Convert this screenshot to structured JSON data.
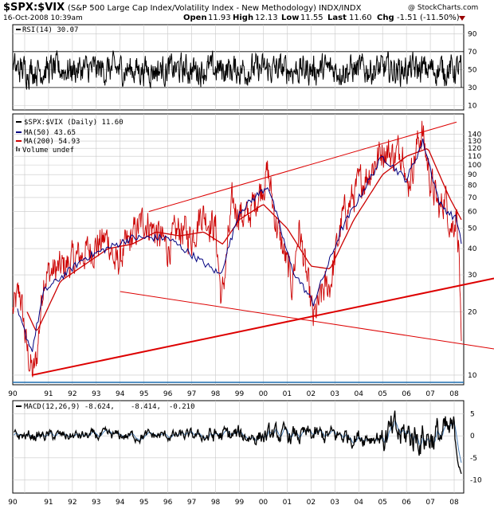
{
  "header": {
    "symbol": "$SPX:$VIX",
    "description": "(S&P 500 Large Cap Index/Volatility Index - New Methodology) INDX/INDX",
    "watermark": "@ StockCharts.com",
    "datetime": "16-Oct-2008 10:39am",
    "open_label": "Open",
    "open_value": "11.93",
    "high_label": "High",
    "high_value": "12.13",
    "low_label": "Low",
    "low_value": "11.55",
    "last_label": "Last",
    "last_value": "11.60",
    "chg_label": "Chg",
    "chg_value": "-1.51 (-11.50%)"
  },
  "rsi_panel": {
    "legend": "RSI(14) 30.07",
    "ticks": [
      "90",
      "70",
      "50",
      "30",
      "10"
    ]
  },
  "main_panel": {
    "legend_price": "$SPX:$VIX (Daily) 11.60",
    "legend_ma50": "MA(50) 43.65",
    "legend_ma200": "MA(200) 54.93",
    "legend_volume": "Volume undef",
    "ticks": [
      "140",
      "130",
      "120",
      "110",
      "100",
      "90",
      "80",
      "70",
      "60",
      "50",
      "40",
      "30",
      "20",
      "10"
    ]
  },
  "year_labels": [
    "90",
    "91",
    "92",
    "93",
    "94",
    "95",
    "96",
    "97",
    "98",
    "99",
    "00",
    "01",
    "02",
    "03",
    "04",
    "05",
    "06",
    "07",
    "08"
  ],
  "macd_panel": {
    "legend_main": "MACD(12,26,9) -8.624,",
    "legend_signal": "-8.414,",
    "legend_hist": "-0.210",
    "ticks": [
      "5",
      "0",
      "-5",
      "-10"
    ]
  },
  "colors": {
    "price": "#cc0000",
    "ma50": "#000080",
    "ma200": "#cc0000",
    "trend": "#dd0000",
    "baseline": "#1f6fb0",
    "signal": "#4b7fb7",
    "down_arrow": "#990000"
  },
  "chart_data": {
    "type": "line",
    "scale": "log",
    "ylim": [
      10,
      140
    ],
    "x_axis_years": [
      "1990",
      "1991",
      "1992",
      "1993",
      "1994",
      "1995",
      "1996",
      "1997",
      "1998",
      "1999",
      "2000",
      "2001",
      "2002",
      "2003",
      "2004",
      "2005",
      "2006",
      "2007",
      "2008"
    ],
    "price_keypoints": [
      [
        1990.0,
        20
      ],
      [
        1990.3,
        25
      ],
      [
        1990.6,
        13
      ],
      [
        1990.85,
        10
      ],
      [
        1991.0,
        12
      ],
      [
        1991.3,
        30
      ],
      [
        1992.0,
        32
      ],
      [
        1993.0,
        38
      ],
      [
        1994.0,
        45
      ],
      [
        1994.3,
        33
      ],
      [
        1995.0,
        45
      ],
      [
        1995.5,
        55
      ],
      [
        1996.0,
        48
      ],
      [
        1996.5,
        40
      ],
      [
        1997.0,
        50
      ],
      [
        1997.5,
        45
      ],
      [
        1997.9,
        60
      ],
      [
        1998.5,
        50
      ],
      [
        1998.75,
        22
      ],
      [
        1999.2,
        65
      ],
      [
        1999.8,
        55
      ],
      [
        2000.7,
        92
      ],
      [
        2001.0,
        55
      ],
      [
        2001.7,
        27
      ],
      [
        2002.0,
        50
      ],
      [
        2002.6,
        18
      ],
      [
        2003.0,
        25
      ],
      [
        2003.3,
        27
      ],
      [
        2003.8,
        55
      ],
      [
        2004.5,
        80
      ],
      [
        2005.0,
        95
      ],
      [
        2005.5,
        120
      ],
      [
        2006.0,
        110
      ],
      [
        2006.4,
        125
      ],
      [
        2006.5,
        75
      ],
      [
        2007.0,
        130
      ],
      [
        2007.15,
        145
      ],
      [
        2007.5,
        85
      ],
      [
        2007.9,
        60
      ],
      [
        2008.1,
        72
      ],
      [
        2008.4,
        50
      ],
      [
        2008.6,
        60
      ],
      [
        2008.72,
        35
      ],
      [
        2008.8,
        11.6
      ]
    ],
    "ma50_keypoints": [
      [
        1990.2,
        20
      ],
      [
        1990.8,
        13
      ],
      [
        1991.3,
        25
      ],
      [
        1993.0,
        36
      ],
      [
        1995.0,
        45
      ],
      [
        1996.5,
        45
      ],
      [
        1998.7,
        30
      ],
      [
        1999.5,
        60
      ],
      [
        2000.7,
        80
      ],
      [
        2001.7,
        32
      ],
      [
        2002.6,
        22
      ],
      [
        2003.8,
        50
      ],
      [
        2005.5,
        110
      ],
      [
        2006.5,
        85
      ],
      [
        2007.2,
        130
      ],
      [
        2007.9,
        65
      ],
      [
        2008.6,
        55
      ],
      [
        2008.8,
        43.65
      ]
    ],
    "ma200_keypoints": [
      [
        1990.6,
        20
      ],
      [
        1991.0,
        16
      ],
      [
        1992.0,
        28
      ],
      [
        1994.0,
        40
      ],
      [
        1995.0,
        42
      ],
      [
        1996.0,
        48
      ],
      [
        1997.0,
        46
      ],
      [
        1998.0,
        48
      ],
      [
        1998.8,
        42
      ],
      [
        1999.5,
        55
      ],
      [
        2000.5,
        65
      ],
      [
        2001.5,
        50
      ],
      [
        2002.5,
        33
      ],
      [
        2003.3,
        32
      ],
      [
        2004.3,
        55
      ],
      [
        2005.5,
        90
      ],
      [
        2006.5,
        110
      ],
      [
        2007.4,
        120
      ],
      [
        2008.3,
        70
      ],
      [
        2008.8,
        54.93
      ]
    ],
    "trendlines": [
      {
        "from": [
          1990.8,
          10
        ],
        "to": [
          2008.95,
          27
        ]
      },
      {
        "from": [
          1995.7,
          60
        ],
        "to": [
          2008.6,
          160
        ]
      },
      {
        "from": [
          1994.5,
          25
        ],
        "to": [
          2008.95,
          14
        ]
      }
    ],
    "rsi": {
      "ylim": [
        10,
        90
      ],
      "last": 30.07,
      "levels": [
        70,
        30
      ]
    },
    "macd": {
      "ylim": [
        -12,
        7
      ],
      "last_macd": -8.624,
      "last_signal": -8.414,
      "last_histogram": -0.21
    }
  }
}
